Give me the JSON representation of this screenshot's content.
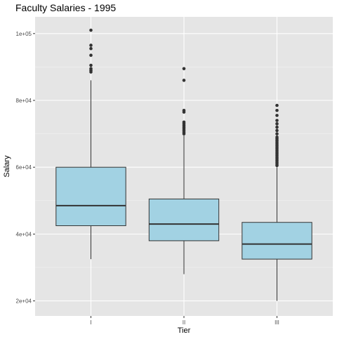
{
  "chart_data": {
    "type": "boxplot",
    "title": "Faculty Salaries - 1995",
    "xlabel": "Tier",
    "ylabel": "Salary",
    "categories": [
      "I",
      "II",
      "III"
    ],
    "ylim": [
      15500,
      105000
    ],
    "yticks": [
      20000,
      40000,
      60000,
      80000,
      100000
    ],
    "ytick_labels": [
      "2e+04",
      "4e+04",
      "6e+04",
      "8e+04",
      "1e+05"
    ],
    "box_color": "#a2d2e3",
    "panel_color": "#e5e5e5",
    "boxes": [
      {
        "category": "I",
        "whisker_low": 32500,
        "q1": 42500,
        "median": 48500,
        "q3": 60000,
        "whisker_high": 86000,
        "outliers": [
          88500,
          89000,
          89500,
          90500,
          93500,
          95500,
          96500,
          101000
        ]
      },
      {
        "category": "II",
        "whisker_low": 28000,
        "q1": 38000,
        "median": 43000,
        "q3": 50500,
        "whisker_high": 69500,
        "outliers": [
          70000,
          70500,
          71000,
          71500,
          72000,
          72500,
          73000,
          73500,
          76500,
          77000,
          86000,
          89500
        ]
      },
      {
        "category": "III",
        "whisker_low": 20000,
        "q1": 32500,
        "median": 37000,
        "q3": 43500,
        "whisker_high": 60000,
        "outliers": [
          60500,
          61000,
          61500,
          62000,
          62500,
          63000,
          63500,
          64000,
          64500,
          65000,
          65500,
          66000,
          66500,
          67000,
          67500,
          68000,
          68500,
          69000,
          70000,
          71000,
          72000,
          73000,
          74000,
          75500,
          77000,
          78500
        ]
      }
    ]
  }
}
